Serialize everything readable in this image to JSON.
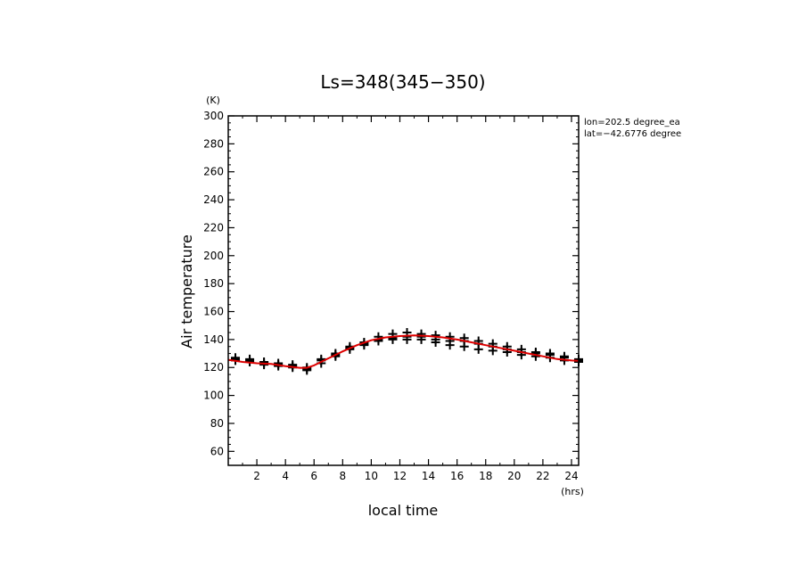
{
  "chart_data": {
    "type": "scatter",
    "title": "Ls=348(345−350)",
    "xlabel": "local time",
    "ylabel": "Air temperature",
    "x_unit": "(hrs)",
    "y_unit": "(K)",
    "xlim": [
      0,
      24.5
    ],
    "ylim": [
      50,
      300
    ],
    "xticks": [
      2,
      4,
      6,
      8,
      10,
      12,
      14,
      16,
      18,
      20,
      22,
      24
    ],
    "yticks": [
      60,
      80,
      100,
      120,
      140,
      160,
      180,
      200,
      220,
      240,
      260,
      280,
      300
    ],
    "annotations": [
      "lon=202.5 degree_ea",
      "lat=−42.6776 degree"
    ],
    "grid": false,
    "colors": {
      "curve": "#dd0000",
      "markers": "#000000"
    },
    "series": [
      {
        "type": "line",
        "x": [
          0,
          1,
          2,
          3,
          4,
          5,
          5.5,
          6,
          7,
          8,
          9,
          10,
          11,
          12,
          13,
          14,
          15,
          16,
          17,
          18,
          19,
          20,
          21,
          22,
          23,
          24,
          24.5
        ],
        "y": [
          125.5,
          124,
          123,
          122.5,
          121,
          119.8,
          119.8,
          121.5,
          126.5,
          131.5,
          136,
          139.5,
          141.5,
          142.5,
          143,
          142.5,
          141.5,
          140,
          138,
          136,
          134,
          132,
          130,
          128,
          126,
          125,
          124.8
        ]
      },
      {
        "type": "scatter",
        "x": [
          0.5,
          1.5,
          2.5,
          3.5,
          4.5,
          5.5,
          6.5,
          7.5,
          8.5,
          9.5,
          10.5,
          11.5,
          12.5,
          13.5,
          14.5,
          15.5,
          16.5,
          17.5,
          18.5,
          19.5,
          20.5,
          21.5,
          22.5,
          23.5,
          24.5
        ],
        "y": [
          126,
          125,
          123,
          122,
          121,
          119,
          125,
          129,
          134,
          137,
          140,
          141,
          142,
          142,
          140,
          139,
          139,
          137,
          135,
          133,
          131,
          130,
          129,
          127,
          125
        ]
      },
      {
        "type": "scatter",
        "x": [
          0.5,
          1.5,
          2.5,
          3.5,
          4.5,
          5.5,
          6.5,
          7.5,
          8.5,
          9.5,
          10.5,
          11.5,
          12.5,
          13.5,
          14.5,
          15.5,
          16.5,
          17.5,
          18.5,
          19.5,
          20.5,
          21.5,
          22.5,
          23.5,
          24.5
        ],
        "y": [
          125,
          124,
          122,
          121,
          120,
          118,
          123,
          128,
          133,
          136,
          139,
          140,
          140,
          140,
          138,
          136,
          135,
          133,
          132,
          131,
          129,
          128,
          127,
          125,
          124
        ]
      },
      {
        "type": "scatter",
        "x": [
          0.5,
          1.5,
          2.5,
          3.5,
          4.5,
          5.5,
          6.5,
          7.5,
          8.5,
          9.5,
          10.5,
          11.5,
          12.5,
          13.5,
          14.5,
          15.5,
          16.5,
          17.5,
          18.5,
          19.5,
          20.5,
          21.5,
          22.5,
          23.5,
          24.5
        ],
        "y": [
          127,
          126,
          124,
          123,
          122,
          120,
          126,
          130,
          135,
          138,
          142,
          144,
          145,
          144,
          143,
          142,
          141,
          139,
          137,
          135,
          133,
          131,
          130,
          128,
          126
        ]
      }
    ]
  }
}
